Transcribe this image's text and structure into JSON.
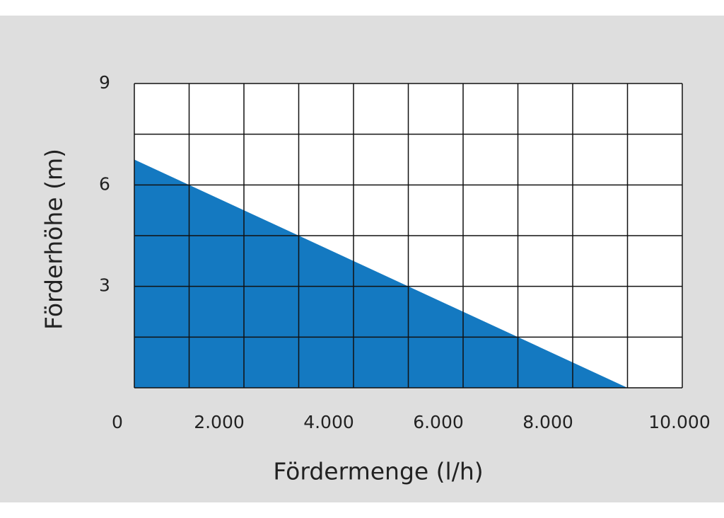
{
  "chart_data": {
    "type": "area",
    "x_label": "Fördermenge (l/h)",
    "y_label": "Förderhöhe (m)",
    "x": [
      0,
      9000
    ],
    "values": [
      6.75,
      0
    ],
    "color": "#1479c1",
    "xlim": [
      0,
      10000
    ],
    "ylim": [
      0,
      9
    ],
    "xticks": [
      0,
      {
        "value": 2000,
        "label": "2.000"
      },
      {
        "value": 4000,
        "label": "4.000"
      },
      {
        "value": 6000,
        "label": "6.000"
      },
      {
        "value": 8000,
        "label": "8.000"
      },
      {
        "value": 10000,
        "label": "10.000"
      }
    ],
    "yticks": [
      3,
      6,
      9
    ],
    "xgrid": [
      0,
      1000,
      2000,
      3000,
      4000,
      5000,
      6000,
      7000,
      8000,
      9000,
      10000
    ],
    "ygrid": [
      0,
      1.5,
      3,
      4.5,
      6,
      7.5,
      9
    ],
    "grid": true
  }
}
